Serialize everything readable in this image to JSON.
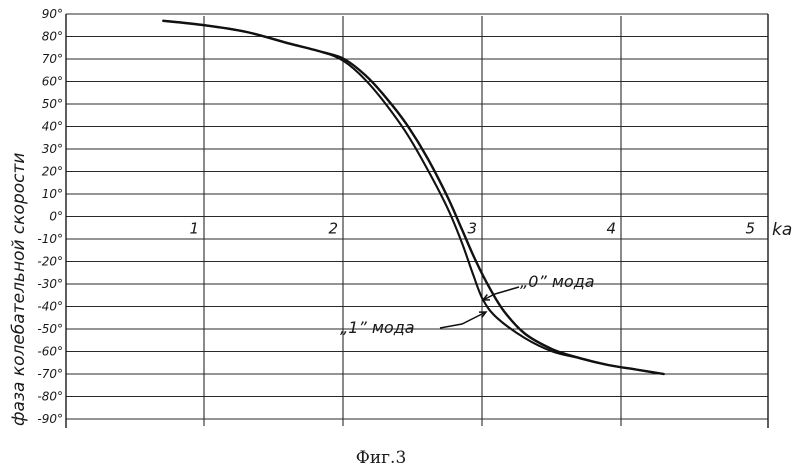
{
  "chart_data": {
    "type": "line",
    "title": "",
    "xlabel": "ka",
    "ylabel": "фаза колебательной скорости",
    "xlim": [
      0,
      5.4
    ],
    "ylim": [
      -90,
      90
    ],
    "x_ticks": [
      {
        "value": 1,
        "label": "1"
      },
      {
        "value": 2,
        "label": "2"
      },
      {
        "value": 3,
        "label": "3"
      },
      {
        "value": 4,
        "label": "4"
      },
      {
        "value": 5,
        "label": "5"
      }
    ],
    "y_ticks": [
      {
        "value": 90,
        "label": "90°"
      },
      {
        "value": 80,
        "label": "80°"
      },
      {
        "value": 70,
        "label": "70°"
      },
      {
        "value": 60,
        "label": "60°"
      },
      {
        "value": 50,
        "label": "50°"
      },
      {
        "value": 40,
        "label": "40°"
      },
      {
        "value": 30,
        "label": "30°"
      },
      {
        "value": 20,
        "label": "20°"
      },
      {
        "value": 10,
        "label": "10°"
      },
      {
        "value": 0,
        "label": "0°"
      },
      {
        "value": -10,
        "label": "-10°"
      },
      {
        "value": -20,
        "label": "-20°"
      },
      {
        "value": -30,
        "label": "-30°"
      },
      {
        "value": -40,
        "label": "-40°"
      },
      {
        "value": -50,
        "label": "-50°"
      },
      {
        "value": -60,
        "label": "-60°"
      },
      {
        "value": -70,
        "label": "-70°"
      },
      {
        "value": -80,
        "label": "-80°"
      },
      {
        "value": -90,
        "label": "-90°"
      }
    ],
    "grid": true,
    "series": [
      {
        "name": "„0” мода",
        "x": [
          0.7,
          1.0,
          1.3,
          1.6,
          1.85,
          2.0,
          2.15,
          2.3,
          2.45,
          2.6,
          2.75,
          2.85,
          2.95,
          3.05,
          3.15,
          3.3,
          3.5,
          3.7,
          3.9,
          4.1,
          4.3
        ],
        "y": [
          87,
          85,
          82,
          77,
          73,
          70,
          63,
          53,
          41,
          26,
          8,
          -6,
          -20,
          -32,
          -42,
          -52,
          -59,
          -63,
          -66,
          -68,
          -70
        ]
      },
      {
        "name": "„1” мода",
        "x": [
          0.7,
          1.0,
          1.3,
          1.6,
          1.85,
          2.0,
          2.15,
          2.3,
          2.45,
          2.6,
          2.75,
          2.85,
          2.93,
          3.0,
          3.1,
          3.3,
          3.5,
          3.7,
          3.9,
          4.1,
          4.3
        ],
        "y": [
          87,
          85,
          82,
          77,
          73,
          69,
          61,
          50,
          37,
          21,
          3,
          -12,
          -26,
          -37,
          -45,
          -54,
          -60,
          -63,
          -66,
          -68,
          -70
        ]
      }
    ],
    "annotations": [
      {
        "text": "„0” мода",
        "series": 0
      },
      {
        "text": "„1” мода",
        "series": 1
      }
    ]
  },
  "caption": "Фиг.3",
  "colors": {
    "ink": "#111111",
    "background": "#ffffff"
  }
}
